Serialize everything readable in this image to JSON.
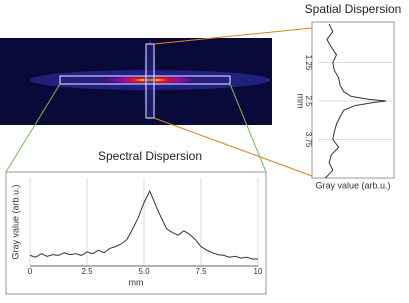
{
  "chart_data": [
    {
      "type": "line",
      "title": "Spectral Dispersion",
      "xlabel": "mm",
      "ylabel": "Gray value (arb.u.)",
      "x": [
        0,
        0.25,
        0.5,
        0.75,
        1,
        1.25,
        1.5,
        1.75,
        2,
        2.25,
        2.5,
        2.75,
        3,
        3.25,
        3.5,
        3.75,
        4,
        4.25,
        4.5,
        4.75,
        5,
        5.25,
        5.5,
        5.75,
        6,
        6.25,
        6.5,
        6.75,
        7,
        7.25,
        7.5,
        7.75,
        8,
        8.25,
        8.5,
        8.75,
        9,
        9.25,
        9.5,
        9.75,
        10
      ],
      "values": [
        0.12,
        0.1,
        0.14,
        0.11,
        0.13,
        0.12,
        0.15,
        0.13,
        0.14,
        0.12,
        0.16,
        0.14,
        0.18,
        0.15,
        0.2,
        0.22,
        0.25,
        0.3,
        0.42,
        0.55,
        0.72,
        0.85,
        0.7,
        0.55,
        0.42,
        0.38,
        0.35,
        0.4,
        0.36,
        0.3,
        0.22,
        0.18,
        0.15,
        0.13,
        0.12,
        0.1,
        0.11,
        0.09,
        0.1,
        0.08,
        0.08
      ],
      "color": "#333333",
      "xlim": [
        0,
        10
      ],
      "ylim": [
        0,
        1
      ],
      "xticks": [
        0,
        2.5,
        {
          "value": 5,
          "label": "5.0"
        },
        7.5,
        10
      ],
      "grid": true,
      "orientation": "horizontal"
    },
    {
      "type": "line",
      "title": "Spatial Dispersion",
      "xlabel": "mm",
      "ylabel": "Gray value (arb.u.)",
      "x": [
        0,
        0.25,
        0.5,
        0.75,
        1,
        1.25,
        1.5,
        1.75,
        2,
        2.2,
        2.35,
        2.45,
        2.5,
        2.55,
        2.65,
        2.8,
        3,
        3.25,
        3.5,
        3.75,
        4,
        4.25,
        4.5,
        4.75,
        5
      ],
      "values": [
        0.15,
        0.2,
        0.12,
        0.18,
        0.25,
        0.2,
        0.22,
        0.28,
        0.3,
        0.35,
        0.45,
        0.7,
        0.92,
        0.75,
        0.5,
        0.35,
        0.3,
        0.25,
        0.22,
        0.2,
        0.28,
        0.18,
        0.15,
        0.2,
        0.1
      ],
      "color": "#333333",
      "xlim": [
        0,
        5
      ],
      "ylim": [
        0,
        1
      ],
      "xticks": [
        1.25,
        2.5,
        3.75
      ],
      "grid": true,
      "orientation": "vertical"
    }
  ]
}
